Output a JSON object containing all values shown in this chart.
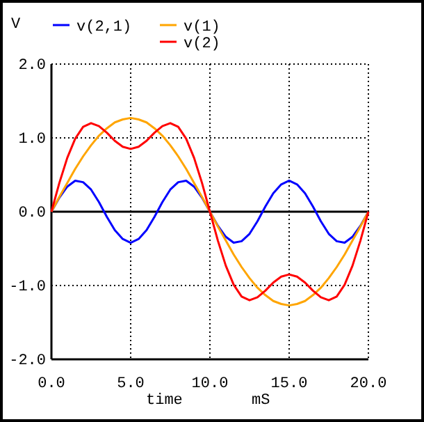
{
  "chart_data": {
    "type": "line",
    "xlabel": "time",
    "ylabel": "V",
    "annotations": [
      "mS"
    ],
    "x": [
      0,
      0.5,
      1,
      1.5,
      2,
      2.5,
      3,
      3.5,
      4,
      4.5,
      5,
      5.5,
      6,
      6.5,
      7,
      7.5,
      8,
      8.5,
      9,
      9.5,
      10,
      10.5,
      11,
      11.5,
      12,
      12.5,
      13,
      13.5,
      14,
      14.5,
      15,
      15.5,
      16,
      16.5,
      17,
      17.5,
      18,
      18.5,
      19,
      19.5,
      20
    ],
    "series": [
      {
        "name": "v(2,1)",
        "color": "#0000ff",
        "values": [
          0,
          0.19,
          0.34,
          0.42,
          0.4,
          0.3,
          0.13,
          -0.07,
          -0.25,
          -0.37,
          -0.42,
          -0.37,
          -0.25,
          -0.07,
          0.13,
          0.3,
          0.4,
          0.42,
          0.34,
          0.19,
          0,
          -0.19,
          -0.34,
          -0.42,
          -0.4,
          -0.3,
          -0.13,
          0.07,
          0.25,
          0.37,
          0.42,
          0.37,
          0.25,
          0.07,
          -0.13,
          -0.3,
          -0.4,
          -0.42,
          -0.34,
          -0.19,
          0
        ]
      },
      {
        "name": "v(1)",
        "color": "#ffa500",
        "values": [
          0,
          0.2,
          0.39,
          0.58,
          0.75,
          0.9,
          1.03,
          1.13,
          1.21,
          1.25,
          1.27,
          1.25,
          1.21,
          1.13,
          1.03,
          0.9,
          0.75,
          0.58,
          0.39,
          0.2,
          0,
          -0.2,
          -0.39,
          -0.58,
          -0.75,
          -0.9,
          -1.03,
          -1.13,
          -1.21,
          -1.25,
          -1.27,
          -1.25,
          -1.21,
          -1.13,
          -1.03,
          -0.9,
          -0.75,
          -0.58,
          -0.39,
          -0.2,
          0
        ]
      },
      {
        "name": "v(2)",
        "color": "#ff0000",
        "values": [
          0,
          0.39,
          0.73,
          0.99,
          1.15,
          1.2,
          1.16,
          1.07,
          0.96,
          0.88,
          0.85,
          0.88,
          0.96,
          1.07,
          1.16,
          1.2,
          1.15,
          0.99,
          0.73,
          0.39,
          0,
          -0.39,
          -0.73,
          -0.99,
          -1.15,
          -1.2,
          -1.16,
          -1.07,
          -0.96,
          -0.88,
          -0.85,
          -0.88,
          -0.96,
          -1.07,
          -1.16,
          -1.2,
          -1.15,
          -0.99,
          -0.73,
          -0.39,
          0
        ]
      }
    ],
    "xlim": [
      0,
      20
    ],
    "xticks": [
      {
        "value": 0,
        "label": "0.0"
      },
      {
        "value": 5,
        "label": "5.0"
      },
      {
        "value": 10,
        "label": "10.0"
      },
      {
        "value": 15,
        "label": "15.0"
      },
      {
        "value": 20,
        "label": "20.0"
      }
    ],
    "ylim": [
      -2,
      2
    ],
    "yticks": [
      {
        "value": -2,
        "label": "-2.0"
      },
      {
        "value": -1,
        "label": "-1.0"
      },
      {
        "value": 0,
        "label": "0.0"
      },
      {
        "value": 1,
        "label": "1.0"
      },
      {
        "value": 2,
        "label": "2.0"
      }
    ],
    "ref_lines": [
      {
        "axis": "y",
        "value": 0,
        "color": "#000000"
      }
    ],
    "grid": true,
    "legend": "top",
    "marker": "none",
    "line_style": "solid"
  }
}
